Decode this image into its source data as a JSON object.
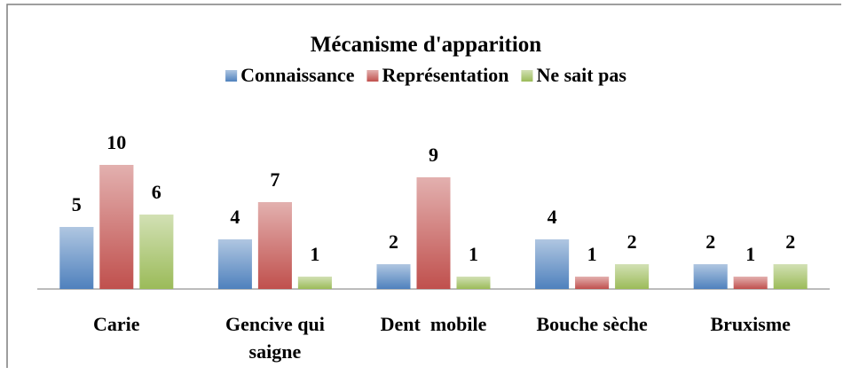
{
  "chart_data": {
    "type": "bar",
    "title": "Mécanisme d'apparition",
    "categories": [
      "Carie",
      "Gencive qui saigne",
      "Dent  mobile",
      "Bouche sèche",
      "Bruxisme"
    ],
    "series": [
      {
        "name": "Connaissance",
        "color": "#4f81bd",
        "values": [
          5,
          4,
          2,
          4,
          2
        ]
      },
      {
        "name": "Représentation",
        "color": "#c0504d",
        "values": [
          10,
          7,
          9,
          1,
          1
        ]
      },
      {
        "name": "Ne sait pas",
        "color": "#9bbb59",
        "values": [
          6,
          1,
          1,
          2,
          2
        ]
      }
    ],
    "legend": "top"
  }
}
